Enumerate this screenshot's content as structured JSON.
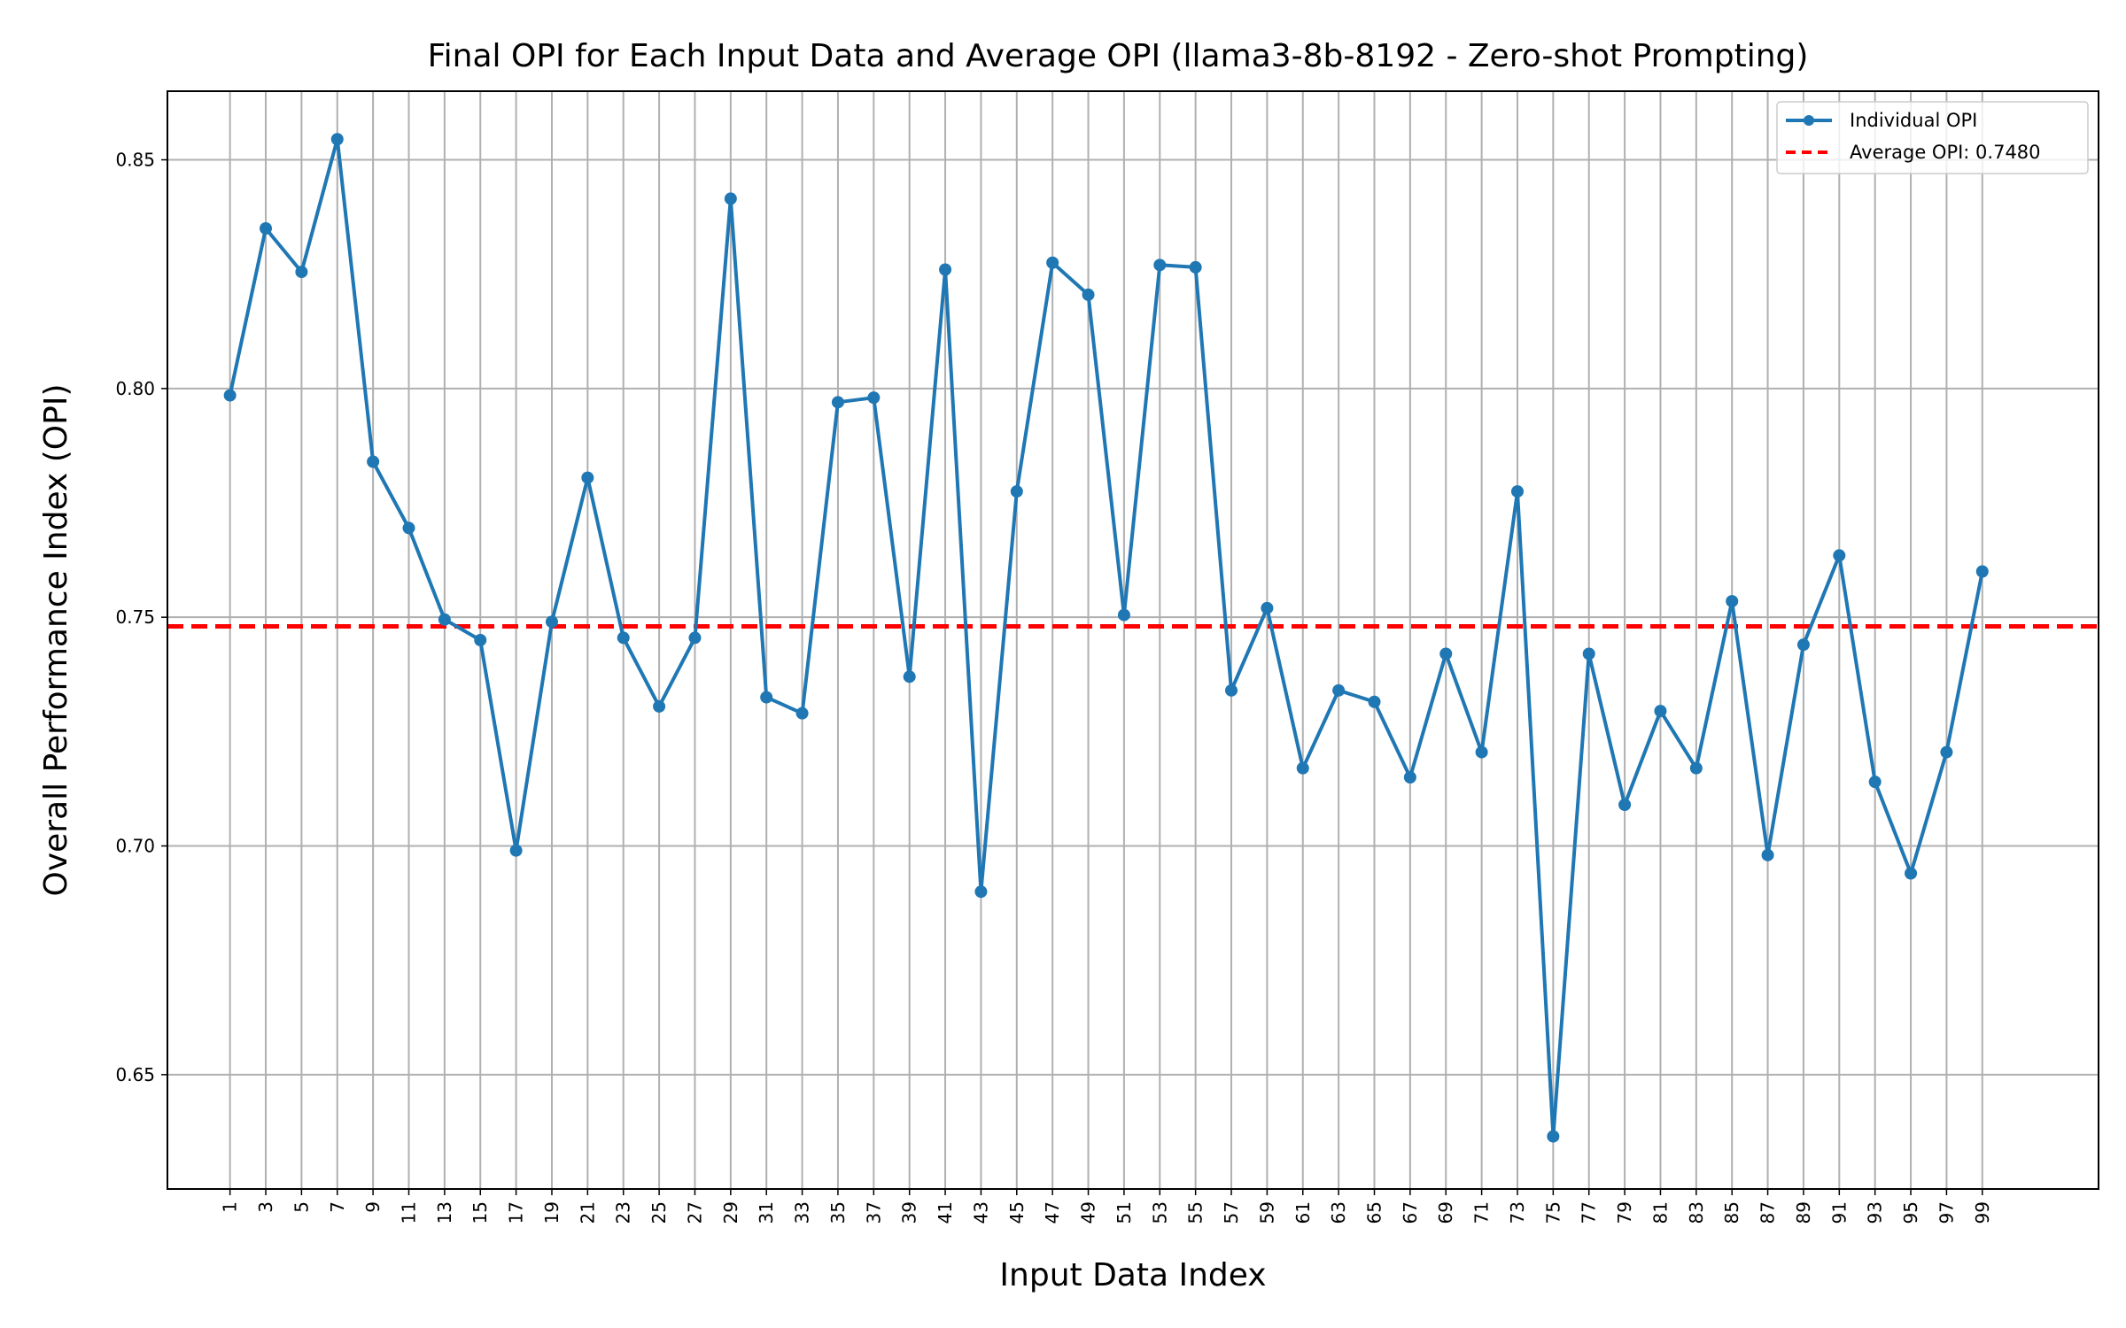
{
  "chart_data": {
    "type": "line",
    "title": "Final OPI for Each Input Data and Average OPI (llama3-8b-8192 - Zero-shot Prompting)",
    "xlabel": "Input Data Index",
    "ylabel": "Overall Performance Index (OPI)",
    "xlim": [
      -2.5,
      105.5
    ],
    "ylim": [
      0.625,
      0.865
    ],
    "yticks": [
      "0.65",
      "0.70",
      "0.75",
      "0.80",
      "0.85"
    ],
    "grid": true,
    "legend_position": "top-right",
    "x": [
      1,
      3,
      5,
      7,
      9,
      11,
      13,
      15,
      17,
      19,
      21,
      23,
      25,
      27,
      29,
      31,
      33,
      35,
      37,
      39,
      41,
      43,
      45,
      47,
      49,
      51,
      53,
      55,
      57,
      59,
      61,
      63,
      65,
      67,
      69,
      71,
      73,
      75,
      77,
      79,
      81,
      83,
      85,
      87,
      89,
      91,
      93,
      95,
      97,
      99
    ],
    "xtick_labels": [
      "1",
      "3",
      "5",
      "7",
      "9",
      "11",
      "13",
      "15",
      "17",
      "19",
      "21",
      "23",
      "25",
      "27",
      "29",
      "31",
      "33",
      "35",
      "37",
      "39",
      "41",
      "43",
      "45",
      "47",
      "49",
      "51",
      "53",
      "55",
      "57",
      "59",
      "61",
      "63",
      "65",
      "67",
      "69",
      "71",
      "73",
      "75",
      "77",
      "79",
      "81",
      "83",
      "85",
      "87",
      "89",
      "91",
      "93",
      "95",
      "97",
      "99"
    ],
    "series": [
      {
        "name": "Individual OPI",
        "color": "#1f77b4",
        "values": [
          0.7985,
          0.835,
          0.8255,
          0.8545,
          0.784,
          0.7695,
          0.7495,
          0.745,
          0.699,
          0.749,
          0.7805,
          0.7455,
          0.7305,
          0.7455,
          0.8415,
          0.7325,
          0.729,
          0.797,
          0.798,
          0.737,
          0.826,
          0.69,
          0.7775,
          0.8275,
          0.8205,
          0.7505,
          0.827,
          0.8265,
          0.734,
          0.752,
          0.717,
          0.734,
          0.7315,
          0.715,
          0.742,
          0.7205,
          0.7775,
          0.6365,
          0.742,
          0.709,
          0.7295,
          0.717,
          0.7535,
          0.698,
          0.744,
          0.7635,
          0.714,
          0.694,
          0.7205,
          0.76
        ]
      }
    ],
    "average": {
      "name": "Average OPI: 0.7480",
      "value": 0.748,
      "color": "#ff0000"
    }
  }
}
